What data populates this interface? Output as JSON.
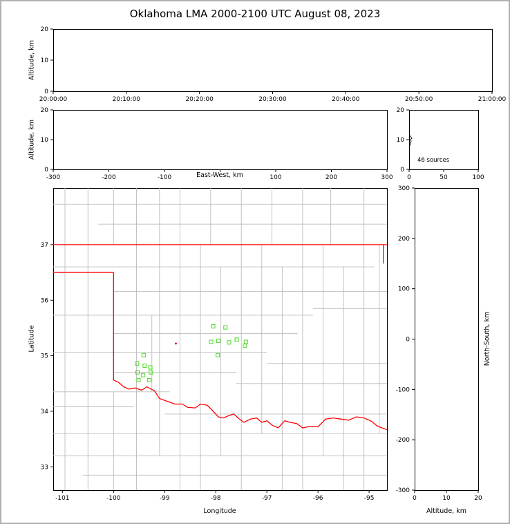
{
  "title": "Oklahoma LMA 2000-2100 UTC August 08, 2023",
  "chart_data": {
    "type": "scatter",
    "title": "Oklahoma LMA 2000-2100 UTC August 08, 2023",
    "panels": {
      "time_height": {
        "ylabel": "Altitude, km",
        "ylim": [
          0,
          20
        ],
        "yticks": [
          0,
          10,
          20
        ],
        "xticks": [
          "20:00:00",
          "20:10:00",
          "20:20:00",
          "20:30:00",
          "20:40:00",
          "20:50:00",
          "21:00:00"
        ],
        "points": []
      },
      "ew_height": {
        "xlabel": "East-West, km",
        "ylabel": "Altitude, km",
        "xlim": [
          -300,
          300
        ],
        "xticks": [
          -300,
          -200,
          -100,
          0,
          100,
          200,
          300
        ],
        "xtick_labels": [
          "-300",
          "-200",
          "-100",
          "",
          "100",
          "200",
          "300"
        ],
        "ylim": [
          0,
          20
        ],
        "yticks": [
          0,
          10,
          20
        ],
        "points": []
      },
      "source_histogram": {
        "annotation": "46 sources",
        "xlim": [
          0,
          100
        ],
        "xticks": [
          0,
          50,
          100
        ],
        "ylim": [
          0,
          20
        ],
        "yticks": [
          0,
          10,
          20
        ],
        "profile_count_vs_alt_km": [
          [
            0,
            7.4
          ],
          [
            1,
            8.1
          ],
          [
            2,
            8.8
          ],
          [
            3,
            9.5
          ],
          [
            2,
            10.0
          ],
          [
            4,
            10.5
          ],
          [
            2,
            11.0
          ],
          [
            1,
            11.4
          ],
          [
            0,
            12.0
          ]
        ]
      },
      "plan_view_map": {
        "xlabel": "Longitude",
        "ylabel": "Latitude",
        "lon_lim": [
          -101.18,
          -94.65
        ],
        "lat_lim": [
          32.58,
          38.02
        ],
        "xticks": [
          -101,
          -100,
          -99,
          -98,
          -97,
          -96,
          -95
        ],
        "yticks": [
          37,
          36,
          35,
          34,
          33
        ],
        "stations_lon_lat": [
          [
            -99.41,
            35.01
          ],
          [
            -99.54,
            34.86
          ],
          [
            -99.39,
            34.82
          ],
          [
            -99.28,
            34.79
          ],
          [
            -99.53,
            34.7
          ],
          [
            -99.42,
            34.65
          ],
          [
            -99.27,
            34.7
          ],
          [
            -99.51,
            34.56
          ],
          [
            -99.3,
            34.56
          ],
          [
            -98.05,
            35.53
          ],
          [
            -97.81,
            35.51
          ],
          [
            -98.09,
            35.25
          ],
          [
            -97.95,
            35.27
          ],
          [
            -97.74,
            35.24
          ],
          [
            -97.59,
            35.29
          ],
          [
            -97.41,
            35.25
          ],
          [
            -97.96,
            35.01
          ],
          [
            -97.43,
            35.18
          ]
        ],
        "source_lon_lat": [
          [
            -98.78,
            35.22
          ]
        ],
        "state_border_polylines": [
          [
            [
              -101.18,
              37.0
            ],
            [
              -94.65,
              37.0
            ]
          ],
          [
            [
              -101.18,
              36.5
            ],
            [
              -100.0,
              36.5
            ]
          ],
          [
            [
              -100.0,
              36.5
            ],
            [
              -100.0,
              34.56
            ]
          ],
          [
            [
              -100.0,
              34.56
            ],
            [
              -99.9,
              34.52
            ],
            [
              -99.8,
              34.44
            ],
            [
              -99.7,
              34.4
            ],
            [
              -99.58,
              34.42
            ],
            [
              -99.45,
              34.38
            ],
            [
              -99.35,
              34.44
            ],
            [
              -99.2,
              34.37
            ],
            [
              -99.1,
              34.23
            ],
            [
              -98.95,
              34.18
            ],
            [
              -98.8,
              34.13
            ],
            [
              -98.65,
              34.13
            ],
            [
              -98.55,
              34.07
            ],
            [
              -98.4,
              34.06
            ],
            [
              -98.3,
              34.13
            ],
            [
              -98.17,
              34.11
            ],
            [
              -98.08,
              34.03
            ],
            [
              -97.95,
              33.9
            ],
            [
              -97.85,
              33.88
            ],
            [
              -97.75,
              33.92
            ],
            [
              -97.65,
              33.95
            ],
            [
              -97.55,
              33.87
            ],
            [
              -97.45,
              33.8
            ],
            [
              -97.32,
              33.86
            ],
            [
              -97.2,
              33.88
            ],
            [
              -97.1,
              33.8
            ],
            [
              -97.0,
              33.83
            ],
            [
              -96.9,
              33.75
            ],
            [
              -96.78,
              33.7
            ],
            [
              -96.65,
              33.83
            ],
            [
              -96.55,
              33.8
            ],
            [
              -96.42,
              33.78
            ],
            [
              -96.3,
              33.7
            ],
            [
              -96.15,
              33.73
            ],
            [
              -96.0,
              33.72
            ],
            [
              -95.85,
              33.86
            ],
            [
              -95.7,
              33.88
            ],
            [
              -95.55,
              33.86
            ],
            [
              -95.4,
              33.84
            ],
            [
              -95.25,
              33.9
            ],
            [
              -95.1,
              33.88
            ],
            [
              -94.95,
              33.82
            ],
            [
              -94.85,
              33.74
            ],
            [
              -94.75,
              33.7
            ],
            [
              -94.65,
              33.67
            ]
          ],
          [
            [
              -94.72,
              37.0
            ],
            [
              -94.72,
              36.66
            ]
          ]
        ],
        "county_h_lines": [
          [
            37.73,
            -101.18,
            -94.65
          ],
          [
            37.37,
            -100.3,
            -94.65
          ],
          [
            36.6,
            -101.18,
            -94.9
          ],
          [
            36.16,
            -100.0,
            -94.65
          ],
          [
            35.73,
            -101.18,
            -96.1
          ],
          [
            35.85,
            -96.1,
            -94.65
          ],
          [
            35.4,
            -100.0,
            -96.4
          ],
          [
            35.06,
            -101.18,
            -97.0
          ],
          [
            34.86,
            -97.0,
            -94.65
          ],
          [
            34.7,
            -100.0,
            -97.6
          ],
          [
            34.5,
            -97.6,
            -94.65
          ],
          [
            34.35,
            -101.18,
            -98.9
          ],
          [
            34.08,
            -101.18,
            -99.6
          ],
          [
            33.95,
            -99.0,
            -94.65
          ],
          [
            33.6,
            -101.18,
            -94.65
          ],
          [
            33.2,
            -101.18,
            -94.65
          ],
          [
            32.85,
            -100.6,
            -94.65
          ]
        ],
        "county_v_lines": [
          [
            -100.95,
            38.02,
            32.58
          ],
          [
            -100.5,
            38.02,
            32.58
          ],
          [
            -100.0,
            38.02,
            37.0
          ],
          [
            -100.0,
            34.35,
            32.58
          ],
          [
            -99.55,
            38.02,
            32.58
          ],
          [
            -99.25,
            35.73,
            34.35
          ],
          [
            -99.1,
            38.02,
            33.2
          ],
          [
            -98.7,
            38.02,
            32.58
          ],
          [
            -98.3,
            37.0,
            32.58
          ],
          [
            -98.1,
            38.02,
            37.0
          ],
          [
            -97.9,
            36.6,
            33.2
          ],
          [
            -97.5,
            38.02,
            32.58
          ],
          [
            -97.1,
            37.0,
            33.6
          ],
          [
            -96.9,
            38.02,
            37.0
          ],
          [
            -96.7,
            36.6,
            32.58
          ],
          [
            -96.3,
            38.02,
            32.58
          ],
          [
            -95.9,
            37.0,
            33.2
          ],
          [
            -95.75,
            38.02,
            37.0
          ],
          [
            -95.5,
            36.6,
            32.58
          ],
          [
            -95.1,
            38.02,
            32.58
          ],
          [
            -94.8,
            37.0,
            33.6
          ]
        ]
      },
      "ns_height": {
        "xlabel": "Altitude, km",
        "ylabel": "North-South, km",
        "xlim": [
          0,
          20
        ],
        "xticks": [
          0,
          10,
          20
        ],
        "ylim": [
          -300,
          300
        ],
        "yticks": [
          300,
          200,
          100,
          0,
          -100,
          -200,
          -300
        ],
        "points": []
      }
    },
    "colors": {
      "station_marker": "#55dd33",
      "state_border": "#ff0000",
      "county_line": "#bbbbbb",
      "source_point": "#cc0044",
      "histogram_line": "#000000",
      "axis": "#000000"
    }
  }
}
